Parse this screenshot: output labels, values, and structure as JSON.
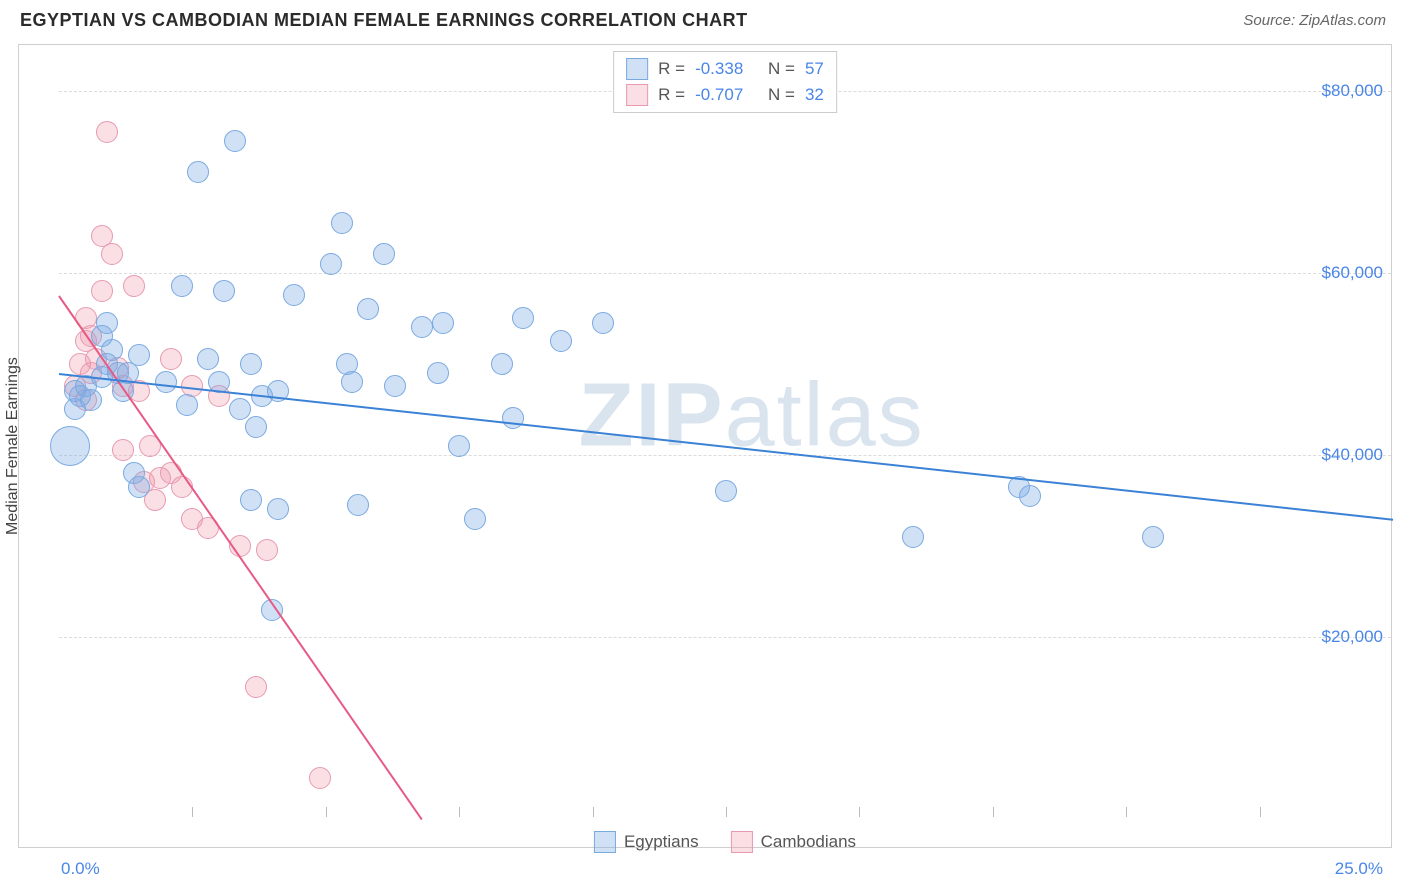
{
  "header": {
    "title": "EGYPTIAN VS CAMBODIAN MEDIAN FEMALE EARNINGS CORRELATION CHART",
    "source_prefix": "Source: ",
    "source_name": "ZipAtlas.com"
  },
  "watermark": {
    "part1": "ZIP",
    "part2": "atlas"
  },
  "chart": {
    "type": "scatter",
    "y_axis_label": "Median Female Earnings",
    "xlim": [
      0,
      25
    ],
    "ylim": [
      0,
      85000
    ],
    "x_start_label": "0.0%",
    "x_end_label": "25.0%",
    "y_ticks": [
      {
        "value": 20000,
        "label": "$20,000"
      },
      {
        "value": 40000,
        "label": "$40,000"
      },
      {
        "value": 60000,
        "label": "$60,000"
      },
      {
        "value": 80000,
        "label": "$80,000"
      }
    ],
    "x_tick_positions": [
      2.5,
      5,
      7.5,
      10,
      12.5,
      15,
      17.5,
      20,
      22.5
    ],
    "grid_color": "#dcdcdc",
    "background_color": "#ffffff",
    "tick_label_color": "#4a86e8",
    "axis_label_fontsize": 16,
    "tick_fontsize": 17,
    "series": {
      "egyptians": {
        "label": "Egyptians",
        "fill": "rgba(120,170,230,0.35)",
        "stroke": "#7aa9e0",
        "trend_color": "#3b82d6",
        "marker_radius": 11,
        "R_label": "R =",
        "R": "-0.338",
        "N_label": "N =",
        "N": "57",
        "trend": {
          "x1": 0,
          "y1": 49000,
          "x2": 25,
          "y2": 33000
        },
        "points": [
          {
            "x": 0.2,
            "y": 41000,
            "r": 20
          },
          {
            "x": 0.3,
            "y": 47000
          },
          {
            "x": 0.3,
            "y": 45000
          },
          {
            "x": 0.4,
            "y": 46500
          },
          {
            "x": 0.5,
            "y": 47500
          },
          {
            "x": 0.6,
            "y": 46000
          },
          {
            "x": 0.8,
            "y": 48500
          },
          {
            "x": 0.8,
            "y": 53000
          },
          {
            "x": 0.9,
            "y": 50000
          },
          {
            "x": 1.0,
            "y": 51500
          },
          {
            "x": 1.1,
            "y": 49000
          },
          {
            "x": 0.9,
            "y": 54500
          },
          {
            "x": 1.2,
            "y": 47000
          },
          {
            "x": 1.3,
            "y": 49000
          },
          {
            "x": 1.5,
            "y": 51000
          },
          {
            "x": 1.5,
            "y": 36500
          },
          {
            "x": 1.4,
            "y": 38000
          },
          {
            "x": 2.0,
            "y": 48000
          },
          {
            "x": 2.3,
            "y": 58500
          },
          {
            "x": 2.6,
            "y": 71000
          },
          {
            "x": 2.8,
            "y": 50500
          },
          {
            "x": 3.0,
            "y": 48000
          },
          {
            "x": 3.1,
            "y": 58000
          },
          {
            "x": 3.3,
            "y": 74500
          },
          {
            "x": 3.4,
            "y": 45000
          },
          {
            "x": 3.6,
            "y": 50000
          },
          {
            "x": 3.6,
            "y": 35000
          },
          {
            "x": 3.7,
            "y": 43000
          },
          {
            "x": 3.8,
            "y": 46500
          },
          {
            "x": 4.0,
            "y": 23000
          },
          {
            "x": 4.1,
            "y": 47000
          },
          {
            "x": 4.1,
            "y": 34000
          },
          {
            "x": 5.1,
            "y": 61000
          },
          {
            "x": 5.3,
            "y": 65500
          },
          {
            "x": 5.4,
            "y": 50000
          },
          {
            "x": 5.5,
            "y": 48000
          },
          {
            "x": 5.6,
            "y": 34500
          },
          {
            "x": 5.8,
            "y": 56000
          },
          {
            "x": 6.1,
            "y": 62000
          },
          {
            "x": 6.3,
            "y": 47500
          },
          {
            "x": 6.8,
            "y": 54000
          },
          {
            "x": 7.1,
            "y": 49000
          },
          {
            "x": 7.2,
            "y": 54500
          },
          {
            "x": 7.5,
            "y": 41000
          },
          {
            "x": 7.8,
            "y": 33000
          },
          {
            "x": 8.3,
            "y": 50000
          },
          {
            "x": 8.5,
            "y": 44000
          },
          {
            "x": 8.7,
            "y": 55000
          },
          {
            "x": 9.4,
            "y": 52500
          },
          {
            "x": 10.2,
            "y": 54500
          },
          {
            "x": 12.5,
            "y": 36000
          },
          {
            "x": 16.0,
            "y": 31000
          },
          {
            "x": 18.0,
            "y": 36500
          },
          {
            "x": 18.2,
            "y": 35500
          },
          {
            "x": 20.5,
            "y": 31000
          },
          {
            "x": 4.4,
            "y": 57500
          },
          {
            "x": 2.4,
            "y": 45500
          }
        ]
      },
      "cambodians": {
        "label": "Cambodians",
        "fill": "rgba(240,150,170,0.30)",
        "stroke": "#e89ab0",
        "trend_color": "#e75a85",
        "marker_radius": 11,
        "R_label": "R =",
        "R": "-0.707",
        "N_label": "N =",
        "N": "32",
        "trend": {
          "x1": 0,
          "y1": 57500,
          "x2": 6.8,
          "y2": 0
        },
        "points": [
          {
            "x": 0.3,
            "y": 47500
          },
          {
            "x": 0.4,
            "y": 50000
          },
          {
            "x": 0.5,
            "y": 55000
          },
          {
            "x": 0.5,
            "y": 52500
          },
          {
            "x": 0.5,
            "y": 46000
          },
          {
            "x": 0.6,
            "y": 53000
          },
          {
            "x": 0.6,
            "y": 49000
          },
          {
            "x": 0.7,
            "y": 50500
          },
          {
            "x": 0.8,
            "y": 64000
          },
          {
            "x": 0.8,
            "y": 58000
          },
          {
            "x": 0.9,
            "y": 75500
          },
          {
            "x": 1.0,
            "y": 62000
          },
          {
            "x": 1.1,
            "y": 49500
          },
          {
            "x": 1.2,
            "y": 40500
          },
          {
            "x": 1.2,
            "y": 47500
          },
          {
            "x": 1.4,
            "y": 58500
          },
          {
            "x": 1.5,
            "y": 47000
          },
          {
            "x": 1.6,
            "y": 37000
          },
          {
            "x": 1.7,
            "y": 41000
          },
          {
            "x": 1.8,
            "y": 35000
          },
          {
            "x": 1.9,
            "y": 37500
          },
          {
            "x": 2.1,
            "y": 38000
          },
          {
            "x": 2.1,
            "y": 50500
          },
          {
            "x": 2.3,
            "y": 36500
          },
          {
            "x": 2.5,
            "y": 33000
          },
          {
            "x": 2.5,
            "y": 47500
          },
          {
            "x": 2.8,
            "y": 32000
          },
          {
            "x": 3.0,
            "y": 46500
          },
          {
            "x": 3.4,
            "y": 30000
          },
          {
            "x": 3.7,
            "y": 14500
          },
          {
            "x": 3.9,
            "y": 29500
          },
          {
            "x": 4.9,
            "y": 4500
          }
        ]
      }
    }
  }
}
